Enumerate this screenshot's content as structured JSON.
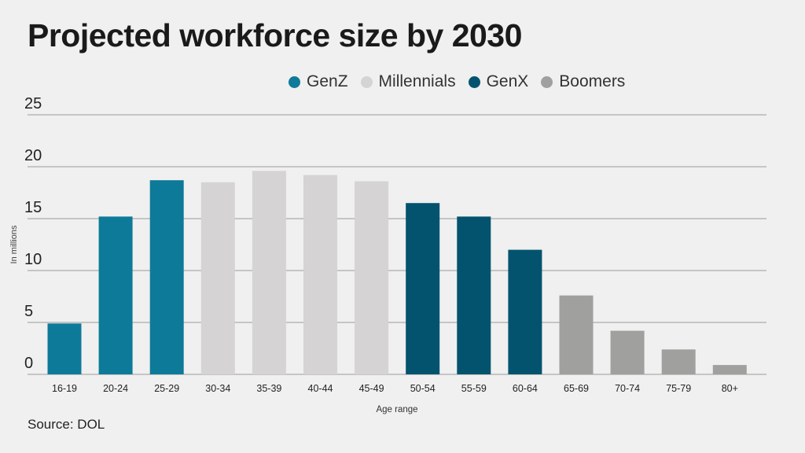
{
  "chart_data": {
    "type": "bar",
    "title": "Projected workforce size by 2030",
    "xlabel": "Age range",
    "ylabel": "In millions",
    "ylim": [
      0,
      25
    ],
    "yticks": [
      "0",
      "5",
      "10",
      "15",
      "20",
      "25"
    ],
    "grid": true,
    "legend_position": "top-right",
    "categories": [
      "16-19",
      "20-24",
      "25-29",
      "30-34",
      "35-39",
      "40-44",
      "45-49",
      "50-54",
      "55-59",
      "60-64",
      "65-69",
      "70-74",
      "75-79",
      "80+"
    ],
    "values": [
      4.9,
      15.2,
      18.7,
      18.5,
      19.6,
      19.2,
      18.6,
      16.5,
      15.2,
      12.0,
      7.6,
      4.2,
      2.4,
      0.9
    ],
    "groups": [
      "GenZ",
      "GenZ",
      "GenZ",
      "Millennials",
      "Millennials",
      "Millennials",
      "Millennials",
      "GenX",
      "GenX",
      "GenX",
      "Boomers",
      "Boomers",
      "Boomers",
      "Boomers"
    ],
    "legend": [
      {
        "name": "GenZ",
        "color": "#0e7a99"
      },
      {
        "name": "Millennials",
        "color": "#d5d3d4"
      },
      {
        "name": "GenX",
        "color": "#03536f"
      },
      {
        "name": "Boomers",
        "color": "#a0a09f"
      }
    ],
    "source": "Source: DOL"
  }
}
